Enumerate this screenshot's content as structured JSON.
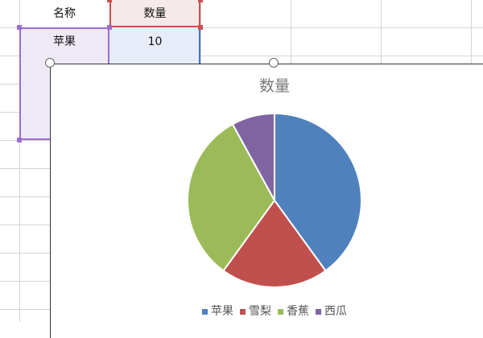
{
  "sheet": {
    "headers": [
      "名称",
      "数量"
    ],
    "rows": [
      [
        "苹果",
        "10"
      ]
    ]
  },
  "chart_data": {
    "type": "pie",
    "title": "数量",
    "categories": [
      "苹果",
      "雪梨",
      "香蕉",
      "西瓜"
    ],
    "values": [
      10,
      5,
      8,
      2
    ],
    "colors": [
      "#4f81bd",
      "#c0504d",
      "#9bbb59",
      "#8064a2"
    ],
    "legend": "bottom"
  }
}
